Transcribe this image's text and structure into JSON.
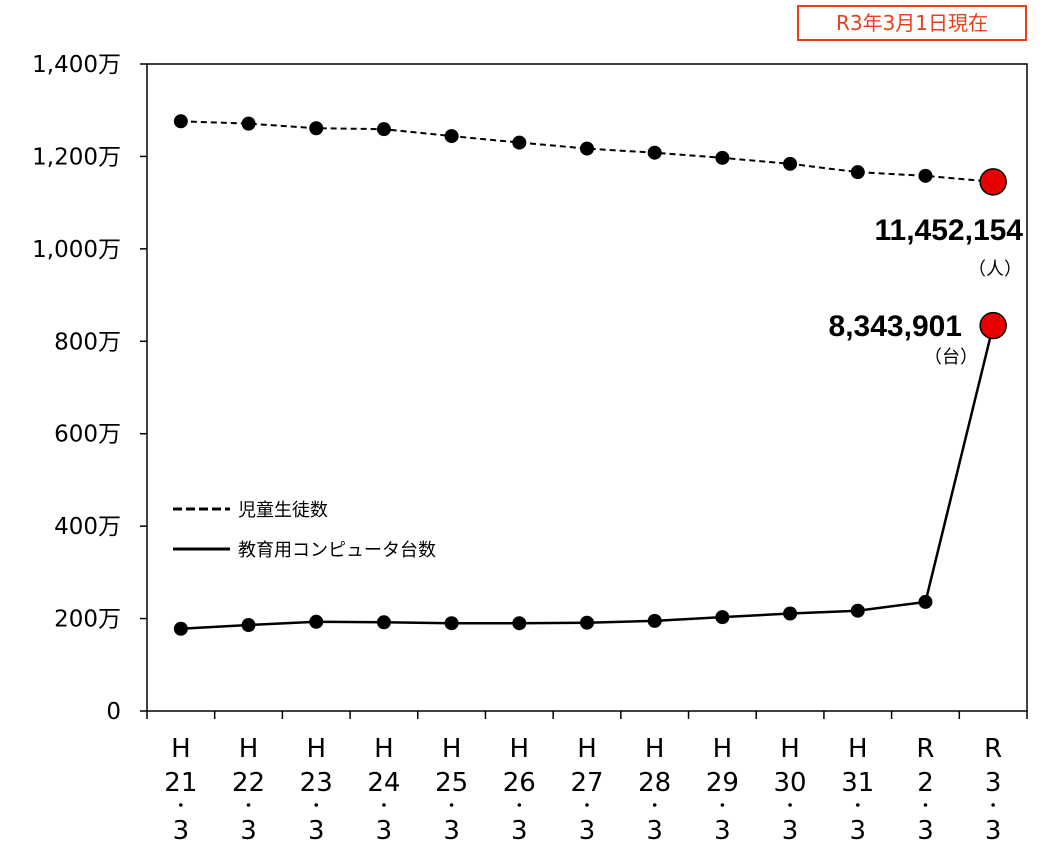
{
  "badge": {
    "text": "R3年3月1日現在"
  },
  "chart_data": {
    "type": "line",
    "categories": [
      [
        "H",
        "21",
        "3"
      ],
      [
        "H",
        "22",
        "3"
      ],
      [
        "H",
        "23",
        "3"
      ],
      [
        "H",
        "24",
        "3"
      ],
      [
        "H",
        "25",
        "3"
      ],
      [
        "H",
        "26",
        "3"
      ],
      [
        "H",
        "27",
        "3"
      ],
      [
        "H",
        "28",
        "3"
      ],
      [
        "H",
        "29",
        "3"
      ],
      [
        "H",
        "30",
        "3"
      ],
      [
        "H",
        "31",
        "3"
      ],
      [
        "R",
        "2",
        "3"
      ],
      [
        "R",
        "3",
        "3"
      ]
    ],
    "y_ticks": [
      {
        "value": 0,
        "label": "0"
      },
      {
        "value": 200,
        "label": "200万"
      },
      {
        "value": 400,
        "label": "400万"
      },
      {
        "value": 600,
        "label": "600万"
      },
      {
        "value": 800,
        "label": "800万"
      },
      {
        "value": 1000,
        "label": "1,000万"
      },
      {
        "value": 1200,
        "label": "1,200万"
      },
      {
        "value": 1400,
        "label": "1,400万"
      }
    ],
    "ylim": [
      0,
      1400
    ],
    "grid": false,
    "legend_position": "left-middle",
    "series": [
      {
        "name": "児童生徒数",
        "style": "dashed",
        "values": [
          1276,
          1271,
          1261,
          1259,
          1244,
          1230,
          1217,
          1208,
          1197,
          1184,
          1166,
          1158,
          1145
        ]
      },
      {
        "name": "教育用コンピュータ台数",
        "style": "solid",
        "values": [
          178,
          186,
          193,
          192,
          190,
          190,
          191,
          195,
          203,
          211,
          217,
          236,
          834
        ]
      }
    ],
    "annotations": [
      {
        "text": "11,452,154",
        "unit": "（人）"
      },
      {
        "text": "8,343,901",
        "unit": "（台）"
      }
    ],
    "colors": {
      "line": "#000000",
      "highlight": "#e80000",
      "badge": "#e8401c"
    }
  }
}
